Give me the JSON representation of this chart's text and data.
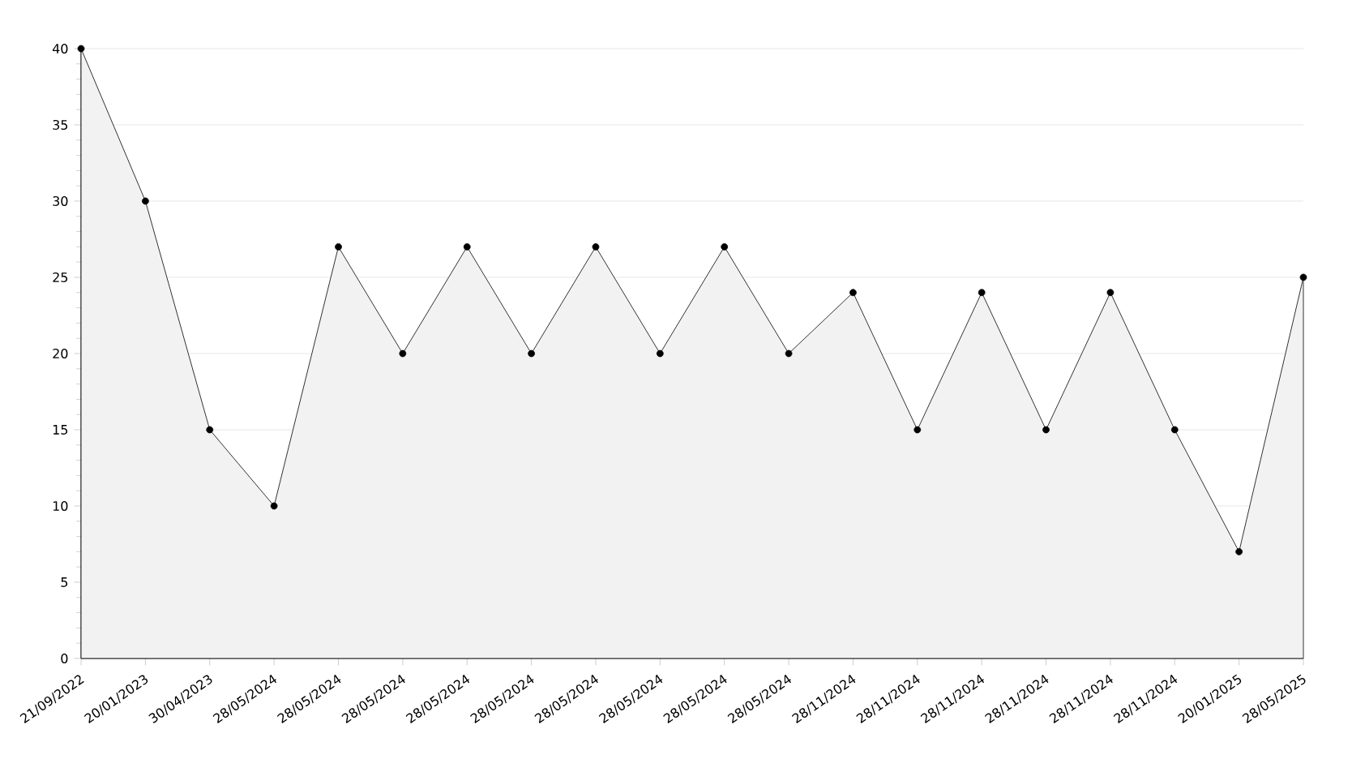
{
  "chart_data": {
    "type": "area",
    "categories": [
      "21/09/2022",
      "20/01/2023",
      "30/04/2023",
      "28/05/2024",
      "28/05/2024",
      "28/05/2024",
      "28/05/2024",
      "28/05/2024",
      "28/05/2024",
      "28/05/2024",
      "28/05/2024",
      "28/05/2024",
      "28/11/2024",
      "28/11/2024",
      "28/11/2024",
      "28/11/2024",
      "28/11/2024",
      "28/11/2024",
      "20/01/2025",
      "28/05/2025"
    ],
    "series": [
      {
        "color": "#000000",
        "values": [
          40,
          30,
          15,
          10,
          27,
          20,
          27,
          20,
          27,
          20,
          27,
          20,
          24,
          15,
          24,
          15,
          24,
          15,
          7,
          25
        ]
      }
    ],
    "ylim": [
      0,
      40
    ],
    "yticks": [
      0,
      5,
      10,
      15,
      20,
      25,
      30,
      35,
      40
    ],
    "grid": "y",
    "marker": "circle"
  }
}
